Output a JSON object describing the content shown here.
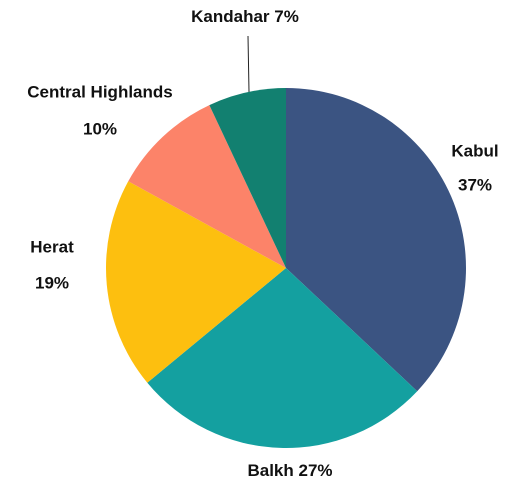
{
  "chart_data": {
    "type": "pie",
    "categories": [
      "Kabul",
      "Balkh",
      "Herat",
      "Central Highlands",
      "Kandahar"
    ],
    "values": [
      37,
      27,
      19,
      10,
      7
    ],
    "value_labels": [
      "37%",
      "27%",
      "19%",
      "10%",
      "7%"
    ],
    "colors": [
      "#3b5482",
      "#14a0a0",
      "#fdbf0f",
      "#fc8369",
      "#128070"
    ]
  }
}
